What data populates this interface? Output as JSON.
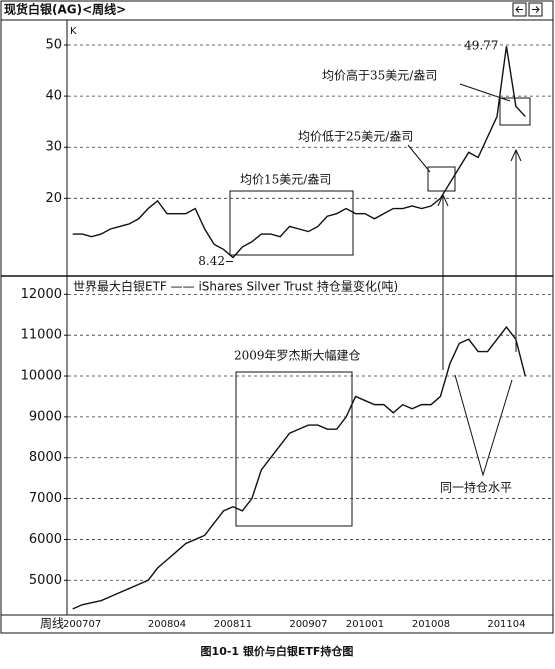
{
  "chart_data": [
    {
      "type": "line",
      "title": "现货白银(AG)<周线>",
      "unit_label": "K",
      "series": [
        {
          "name": "现货白银",
          "color": "#111111",
          "values": [
            13,
            13,
            12.5,
            13,
            14,
            14.5,
            15,
            16,
            18,
            19.5,
            17,
            17,
            17,
            18,
            14,
            11,
            10,
            8.42,
            10.5,
            11.5,
            13,
            13,
            12.5,
            14.5,
            14,
            13.5,
            14.5,
            16.5,
            17,
            18,
            17,
            17,
            16,
            17,
            18,
            18,
            18.5,
            18,
            18.5,
            20,
            23,
            26,
            29,
            28,
            32,
            36,
            49.77,
            38,
            36
          ]
        }
      ],
      "ylim": [
        5,
        54.5
      ],
      "yticks": [
        20,
        30,
        40,
        50
      ],
      "grid": true,
      "annotations": [
        "均价15美元/盎司",
        "均价低于25美元/盎司",
        "均价高于35美元/盎司"
      ]
    },
    {
      "type": "line",
      "title": "世界最大白银ETF —— iShares Silver Trust 持仓量变化(吨)",
      "x_label": "周线",
      "categories": [
        null,
        "200707",
        null,
        null,
        null,
        null,
        null,
        null,
        null,
        null,
        "200804",
        null,
        null,
        null,
        null,
        null,
        null,
        "200811",
        null,
        null,
        null,
        null,
        null,
        null,
        null,
        "200907",
        null,
        null,
        null,
        null,
        null,
        "201001",
        null,
        null,
        null,
        null,
        null,
        null,
        "201008",
        null,
        null,
        null,
        null,
        null,
        null,
        null,
        "201104",
        null,
        null
      ],
      "series": [
        {
          "name": "iShares Silver Trust",
          "color": "#111111",
          "values": [
            4300,
            4400,
            4450,
            4500,
            4600,
            4700,
            4800,
            4900,
            5000,
            5300,
            5500,
            5700,
            5900,
            6000,
            6100,
            6400,
            6700,
            6800,
            6700,
            7000,
            7700,
            8000,
            8300,
            8600,
            8700,
            8800,
            8800,
            8700,
            8700,
            9000,
            9500,
            9400,
            9300,
            9300,
            9100,
            9300,
            9200,
            9300,
            9300,
            9500,
            10300,
            10800,
            10900,
            10600,
            10600,
            10900,
            11200,
            10900,
            10000
          ]
        }
      ],
      "ylim": [
        4150,
        12400
      ],
      "yticks": [
        5000,
        6000,
        7000,
        8000,
        9000,
        10000,
        11000,
        12000
      ],
      "grid": true,
      "annotations": [
        "2009年罗杰斯大幅建仓",
        "同一持仓水平"
      ]
    }
  ],
  "caption": "图10-1  银价与白银ETF持仓图"
}
